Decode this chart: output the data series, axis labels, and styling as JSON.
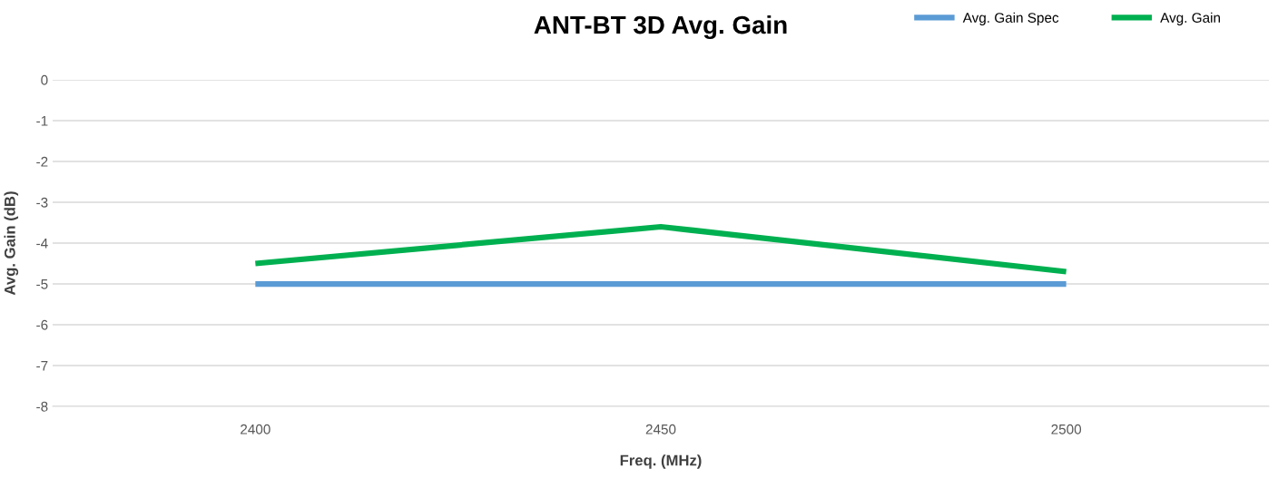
{
  "chart_data": {
    "type": "line",
    "title": "ANT-BT 3D Avg. Gain",
    "xlabel": "Freq. (MHz)",
    "ylabel": "Avg. Gain (dB)",
    "categories": [
      "2400",
      "2450",
      "2500"
    ],
    "series": [
      {
        "name": "Avg. Gain Spec",
        "color": "#5b9bd5",
        "values": [
          -5,
          -5,
          -5
        ]
      },
      {
        "name": "Avg. Gain",
        "color": "#00b050",
        "values": [
          -4.5,
          -3.6,
          -4.7
        ]
      }
    ],
    "ylim": [
      -8,
      0
    ],
    "yticks": [
      0,
      -1,
      -2,
      -3,
      -4,
      -5,
      -6,
      -7,
      -8
    ],
    "grid": "y",
    "legend": "top right",
    "marker": "none",
    "line_style": "solid"
  }
}
